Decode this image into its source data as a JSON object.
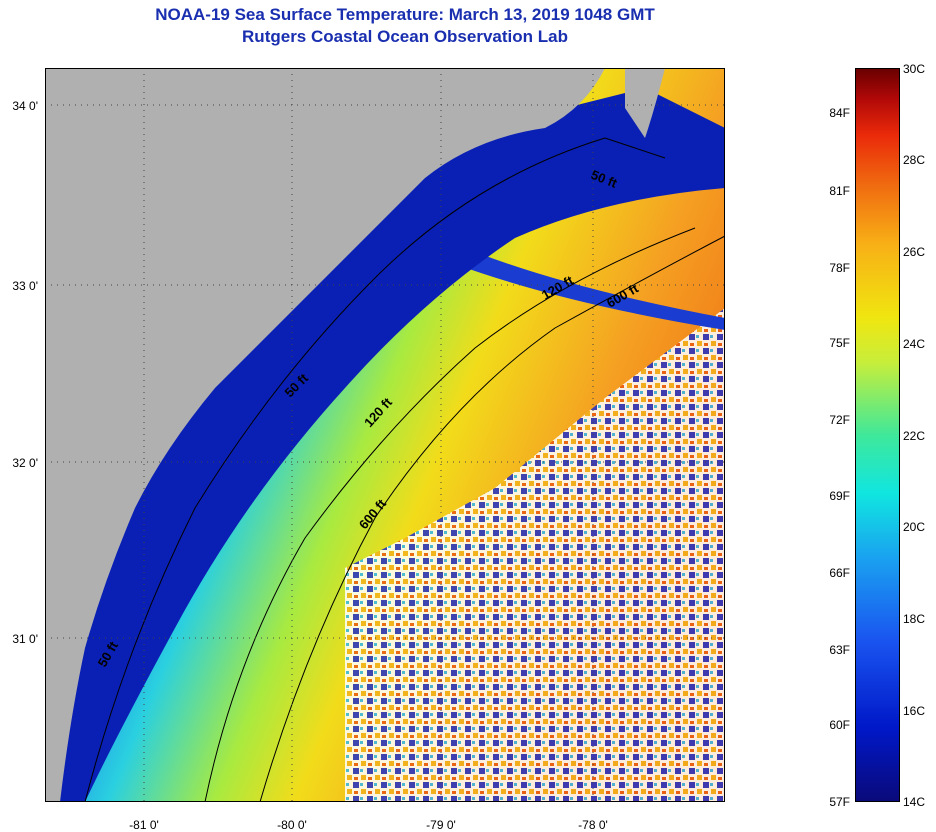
{
  "header": {
    "title": "NOAA-19 Sea Surface Temperature:  March 13, 2019 1048 GMT",
    "subtitle": "Rutgers Coastal Ocean Observation Lab"
  },
  "map": {
    "lat_labels": [
      "34 0'",
      "33 0'",
      "32 0'",
      "31 0'"
    ],
    "lon_labels": [
      "-81 0'",
      "-80 0'",
      "-79 0'",
      "-78 0'"
    ],
    "depth_contours": [
      "50 ft",
      "120 ft",
      "600 ft",
      "50 ft",
      "120 ft",
      "600 ft",
      "50 ft"
    ],
    "colors": {
      "land": "#b0b0b0",
      "coastal_cold": "#0a20b4",
      "shelf_cool": "#2aa8f0",
      "mid_shelf": "#50e6b0",
      "warm": "#f2dc1a",
      "gulf_stream": "#f07a18",
      "cloud": "#ffffff"
    }
  },
  "colorbar": {
    "fahrenheit_labels": [
      "84F",
      "81F",
      "78F",
      "75F",
      "72F",
      "69F",
      "66F",
      "63F",
      "60F",
      "57F"
    ],
    "celsius_labels": [
      "30C",
      "28C",
      "26C",
      "24C",
      "22C",
      "20C",
      "18C",
      "16C",
      "14C"
    ]
  }
}
